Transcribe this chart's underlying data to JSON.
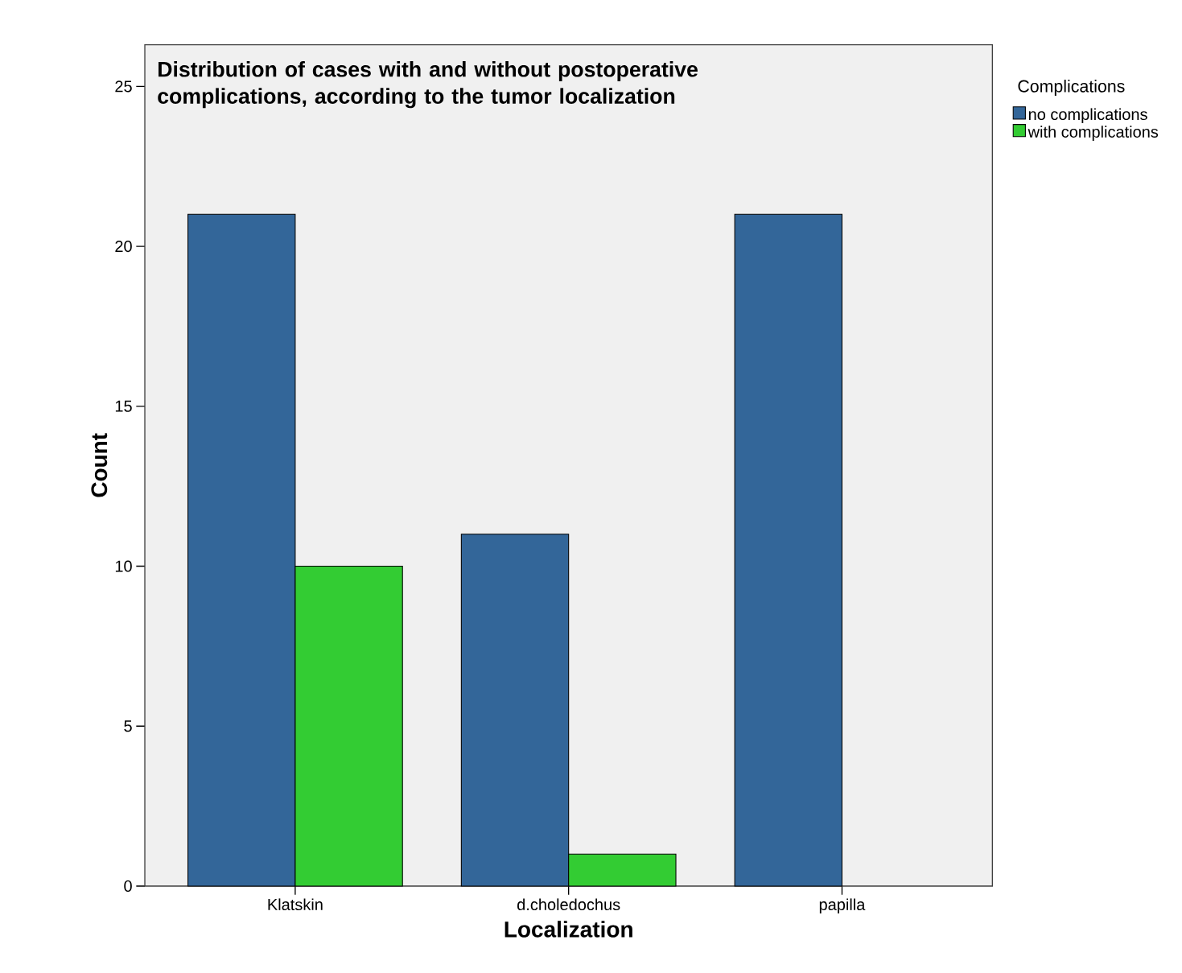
{
  "chart_data": {
    "type": "bar",
    "title": "Distribution of cases with and without postoperative complications, according to the tumor localization",
    "xlabel": "Localization",
    "ylabel": "Count",
    "legend_title": "Complications",
    "categories": [
      "Klatskin",
      "d.choledochus",
      "papilla"
    ],
    "series": [
      {
        "name": "no complications",
        "color": "#336699",
        "values": [
          21,
          11,
          21
        ]
      },
      {
        "name": "with complications",
        "color": "#33cc33",
        "values": [
          10,
          1,
          null
        ]
      }
    ],
    "ylim": [
      0,
      26.3
    ],
    "yticks": [
      0,
      5,
      10,
      15,
      20,
      25
    ],
    "grid": false,
    "legend": "top right"
  }
}
